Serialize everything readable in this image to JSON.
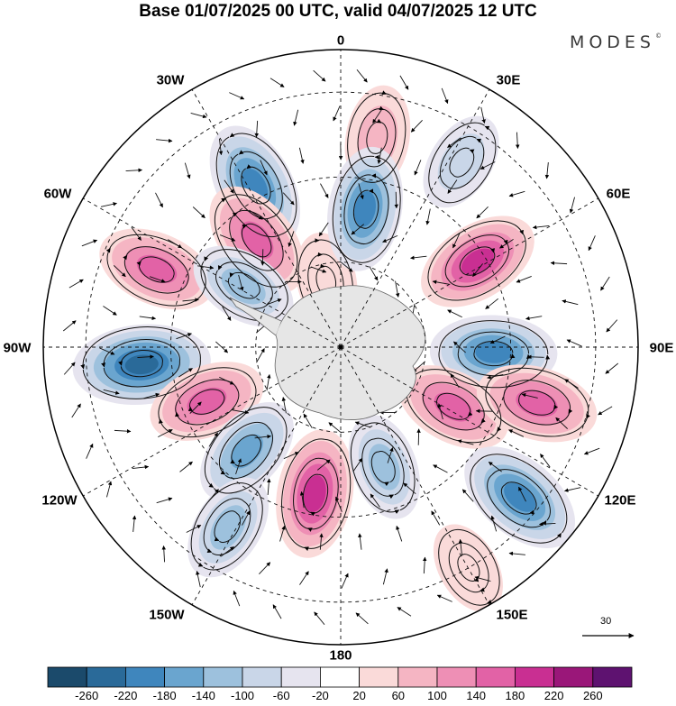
{
  "title": "Base 01/07/2025 00 UTC, valid 04/07/2025 12 UTC",
  "brand": {
    "name": "MODES",
    "mark": "©"
  },
  "longitude_labels": {
    "deg0": "0",
    "deg30e": "30E",
    "deg60e": "60E",
    "deg90e": "90E",
    "deg120e": "120E",
    "deg150e": "150E",
    "deg180": "180",
    "deg150w": "150W",
    "deg120w": "120W",
    "deg90w": "90W",
    "deg60w": "60W",
    "deg30w": "30W"
  },
  "reference_vector": {
    "label": "30"
  },
  "colorbar": {
    "colors": [
      "#1b4a6b",
      "#2a6a99",
      "#3f86bd",
      "#6aa5cf",
      "#9dc1dd",
      "#c9d6e8",
      "#e6e4ef",
      "#ffffff",
      "#fadad9",
      "#f5b5c3",
      "#ee8fb5",
      "#e262a6",
      "#c92f92",
      "#9a1779",
      "#5e1270"
    ],
    "labels": [
      "-260",
      "-220",
      "-180",
      "-140",
      "-100",
      "-60",
      "-20",
      "20",
      "60",
      "100",
      "140",
      "180",
      "220",
      "260"
    ]
  },
  "anomaly_centers": [
    {
      "lon": 10,
      "lat": -40,
      "value": 90
    },
    {
      "lon": -28,
      "lat": -47,
      "value": -200
    },
    {
      "lon": -38,
      "lat": -58,
      "value": 170
    },
    {
      "lon": -12,
      "lat": -74,
      "value": 50
    },
    {
      "lon": 10,
      "lat": -57,
      "value": -180
    },
    {
      "lon": 33,
      "lat": -38,
      "value": -70
    },
    {
      "lon": 58,
      "lat": -52,
      "value": 180
    },
    {
      "lon": 92,
      "lat": -54,
      "value": -190
    },
    {
      "lon": -67,
      "lat": -43,
      "value": 160
    },
    {
      "lon": -58,
      "lat": -63,
      "value": -110
    },
    {
      "lon": -95,
      "lat": -43,
      "value": -240
    },
    {
      "lon": -112,
      "lat": -56,
      "value": 150
    },
    {
      "lon": -138,
      "lat": -57,
      "value": -140
    },
    {
      "lon": -148,
      "lat": -40,
      "value": -110
    },
    {
      "lon": -170,
      "lat": -55,
      "value": 200
    },
    {
      "lon": 160,
      "lat": -60,
      "value": -100
    },
    {
      "lon": 118,
      "lat": -60,
      "value": 150
    },
    {
      "lon": 106,
      "lat": -42,
      "value": 170
    },
    {
      "lon": 130,
      "lat": -35,
      "value": -200
    },
    {
      "lon": 150,
      "lat": -30,
      "value": 40
    }
  ]
}
